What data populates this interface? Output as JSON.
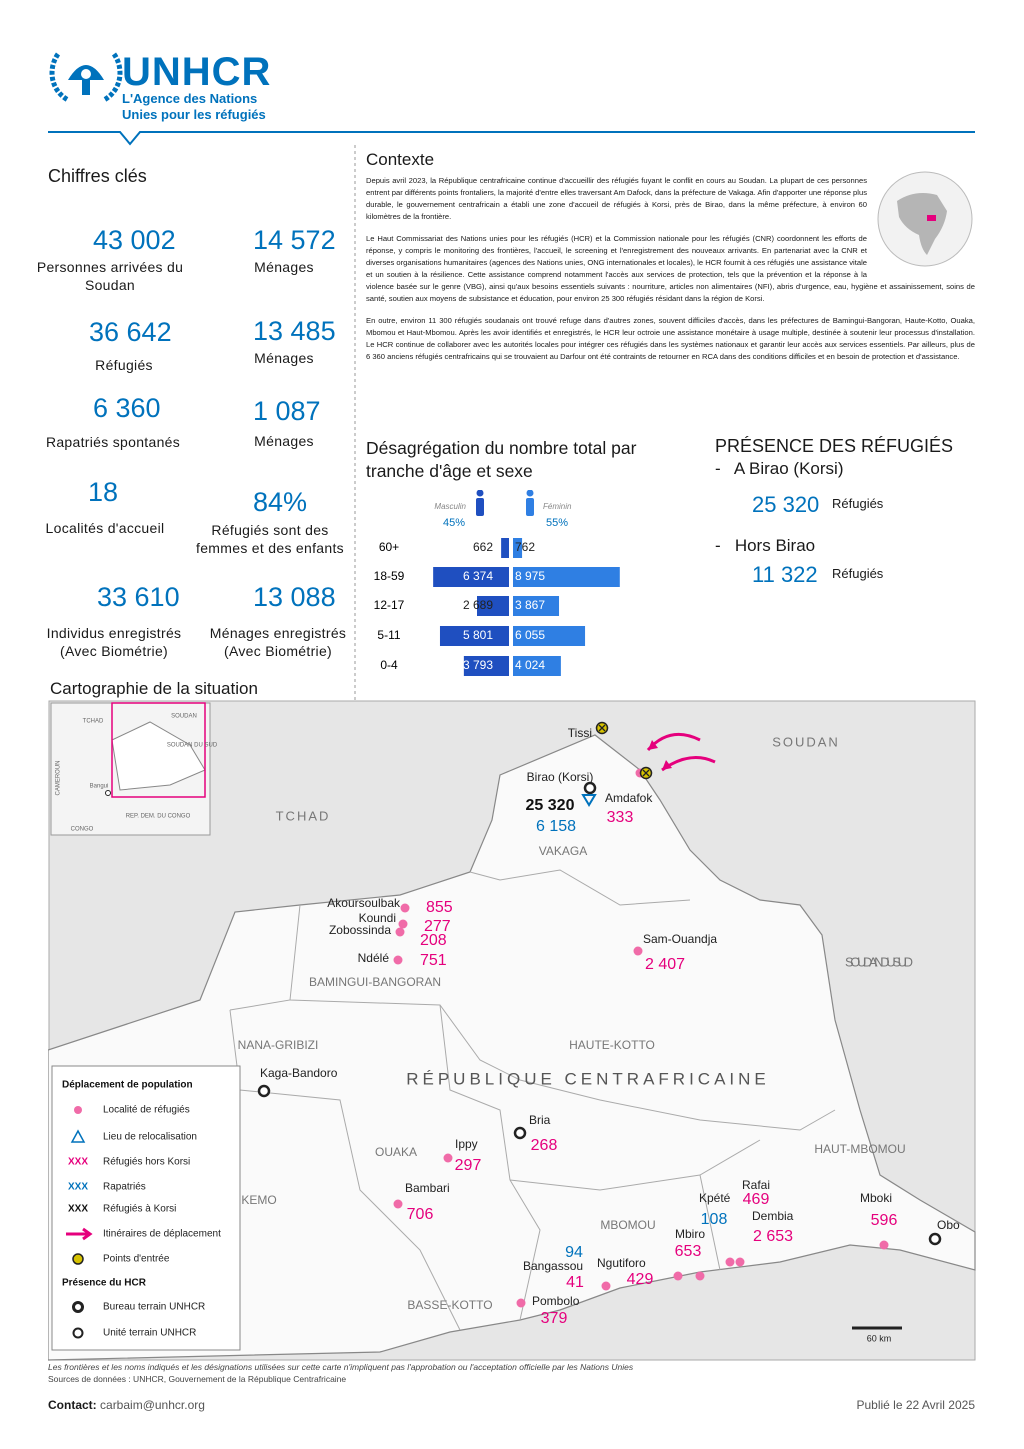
{
  "header": {
    "logo": "UNHCR",
    "tagline": [
      "L'Agence des Nations",
      "Unies pour les réfugiés"
    ]
  },
  "key_figures": {
    "title": "Chiffres clés",
    "items": [
      {
        "value": "43 002",
        "label": "Personnes arrivées du Soudan"
      },
      {
        "value": "14 572",
        "label": "Ménages"
      },
      {
        "value": "36 642",
        "label": "Réfugiés"
      },
      {
        "value": "13 485",
        "label": "Ménages"
      },
      {
        "value": "6 360",
        "label": "Rapatriés spontanés"
      },
      {
        "value": "1 087",
        "label": "Ménages"
      },
      {
        "value": "18",
        "label": "Localités d'accueil"
      },
      {
        "value": "84%",
        "label": "Réfugiés sont des femmes et des enfants"
      },
      {
        "value": "33 610",
        "label": "Individus enregistrés (Avec Biométrie)"
      },
      {
        "value": "13 088",
        "label": "Ménages enregistrés (Avec Biométrie)"
      }
    ]
  },
  "context": {
    "title": "Contexte",
    "paragraphs": [
      "Depuis avril 2023, la République centrafricaine continue d'accueillir des réfugiés fuyant le conflit en cours au Soudan. La plupart de ces personnes entrent par différents points frontaliers, la majorité d'entre elles traversant Am Dafock, dans la préfecture de Vakaga. Afin d'apporter une réponse plus durable, le gouvernement centrafricain a établi une zone d'accueil de réfugiés à Korsi, près de Birao, dans la même préfecture, à environ 60 kilomètres de la frontière.",
      "Le Haut Commissariat des Nations unies pour les réfugiés (HCR) et la Commission nationale pour les réfugiés (CNR) coordonnent les efforts de réponse, y compris le monitoring des frontières, l'accueil, le screening et l'enregistrement des nouveaux arrivants. En partenariat avec la CNR et diverses organisations humanitaires (agences des Nations unies, ONG internationales et locales), le HCR fournit à ces réfugiés une assistance vitale et un soutien à la résilience. Cette assistance comprend notamment l'accès aux services de protection, tels que la prévention et la réponse à la violence basée sur le genre (VBG), ainsi qu'aux besoins essentiels suivants : nourriture, articles non alimentaires (NFI), abris d'urgence, eau, hygiène et assainissement, soins de santé, soutien aux moyens de subsistance et éducation, pour environ 25 300 réfugiés résidant dans la région de Korsi.",
      "En outre, environ 11 300 réfugiés soudanais ont trouvé refuge dans d'autres zones, souvent difficiles d'accès, dans les préfectures de Bamingui-Bangoran, Haute-Kotto, Ouaka, Mbomou et Haut-Mbomou. Après les avoir identifiés et enregistrés, le HCR leur octroie une assistance monétaire à usage multiple, destinée à soutenir leur processus d'installation. Le HCR continue de collaborer avec les autorités locales pour intégrer ces réfugiés dans les systèmes nationaux et garantir leur accès aux services essentiels. Par ailleurs, plus de 6 360 anciens réfugiés centrafricains qui se trouvaient au Darfour ont été contraints de retourner en RCA dans des conditions difficiles et en besoin de protection et d'assistance."
    ]
  },
  "age_sex": {
    "title": "Désagrégation du nombre total par tranche d'âge et sexe",
    "categories": [
      "60+",
      "18-59",
      "12-17",
      "5-11",
      "0-4"
    ],
    "male": {
      "name": "Masculin",
      "share": "45%",
      "color": "#1f4fc0",
      "values": [
        662,
        6374,
        2689,
        5801,
        3793
      ],
      "value_labels": [
        "662",
        "6 374",
        "2 689",
        "5 801",
        "3 793"
      ]
    },
    "female": {
      "name": "Féminin",
      "share": "55%",
      "color": "#2f7fe3",
      "values": [
        762,
        8975,
        3867,
        6055,
        4024
      ],
      "value_labels": [
        "762",
        "8 975",
        "3 867",
        "6 055",
        "4 024"
      ]
    }
  },
  "presence": {
    "title": "PRÉSENCE DES RÉFUGIÉS",
    "items": [
      {
        "place": "-   A Birao (Korsi)",
        "value": "25 320",
        "unit": "Réfugiés"
      },
      {
        "place": "-   Hors Birao",
        "value": "11 322",
        "unit": "Réfugiés"
      }
    ]
  },
  "map": {
    "title": "Cartographie de la situation",
    "countries": [
      "TCHAD",
      "SOUDAN",
      "SOUDAN DU SUD",
      "RÉPUBLIQUE CENTRAFRICAINE"
    ],
    "prefectures": [
      "VAKAGA",
      "BAMINGUI-BANGORAN",
      "NANA-GRIBIZI",
      "HAUTE-KOTTO",
      "HAUT-MBOMOU",
      "OUAKA",
      "KEMO",
      "MBOMOU",
      "BASSE-KOTTO"
    ],
    "places": [
      "Tissi",
      "Birao (Korsi)",
      "Amdafok",
      "Akoursoulbak",
      "Koundi",
      "Zobossinda",
      "Ndélé",
      "Sam-Ouandja",
      "Kaga-Bandoro",
      "Bria",
      "Ippy",
      "Bambari",
      "Kpété",
      "Rafai",
      "Dembia",
      "Mboki",
      "Obo",
      "Mbiro",
      "Ngutiforo",
      "Bangassou",
      "Pombolo"
    ],
    "refugees": [
      "855",
      "277",
      "208",
      "751",
      "2 407",
      "333",
      "268",
      "297",
      "706",
      "469",
      "2 653",
      "596",
      "653",
      "429",
      "41",
      "379"
    ],
    "returnees": [
      "6 158",
      "108",
      "94"
    ],
    "korsi": "25 320",
    "inset": [
      "TCHAD",
      "SOUDAN",
      "SOUDAN DU SUD",
      "CAMEROUN",
      "Bangui",
      "REP. DEM. DU CONGO",
      "CONGO"
    ],
    "scale": "60 km",
    "legend": {
      "title": "Déplacement de population",
      "items": [
        {
          "label": "Localité de réfugiés"
        },
        {
          "label": "Lieu de relocalisation"
        },
        {
          "symbol": "XXX",
          "label": "Réfugiés hors Korsi"
        },
        {
          "symbol": "XXX",
          "label": "Rapatriés"
        },
        {
          "symbol": "XXX",
          "label": "Réfugiés à Korsi"
        },
        {
          "label": "Itinéraires de déplacement"
        },
        {
          "label": "Points d'entrée"
        }
      ],
      "hcr_title": "Présence du HCR",
      "hcr_items": [
        "Bureau terrain UNHCR",
        "Unité terrain UNHCR"
      ]
    }
  },
  "footer": {
    "disclaimer": "Les frontières et les noms indiqués et les désignations utilisées sur cette carte n'impliquent pas l'approbation ou l'acceptation officielle par les Nations Unies",
    "sources": "Sources de données :  UNHCR, Gouvernement de la République Centrafricaine",
    "contact_label": "Contact:",
    "contact_email": "carbaim@unhcr.org",
    "published": "Publié le 22 Avril 2025"
  }
}
